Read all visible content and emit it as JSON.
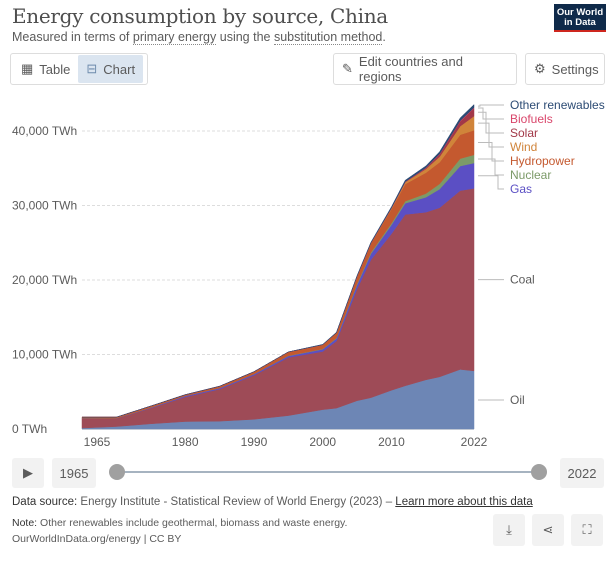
{
  "header": {
    "title": "Energy consumption by source, China",
    "subtitle_pre": "Measured in terms of ",
    "subtitle_link1": "primary energy",
    "subtitle_mid": " using the ",
    "subtitle_link2": "substitution method",
    "subtitle_post": ".",
    "logo": "Our World in Data"
  },
  "toolbar": {
    "table_label": "Table",
    "chart_label": "Chart",
    "edit_label": "Edit countries and regions",
    "settings_label": "Settings"
  },
  "timeline": {
    "start": "1965",
    "end": "2022"
  },
  "footer": {
    "source_label": "Data source:",
    "source_text": " Energy Institute - Statistical Review of World Energy (2023) – ",
    "source_link": "Learn more about this data",
    "note_label": "Note:",
    "note_text": " Other renewables include geothermal, biomass and waste energy.",
    "url": "OurWorldInData.org/energy | CC BY"
  },
  "chart_data": {
    "type": "area",
    "stacked": true,
    "title": "Energy consumption by source, China",
    "ylabel": "",
    "xlabel": "",
    "ylim": [
      0,
      44000
    ],
    "xlim": [
      1965,
      2022
    ],
    "y_ticks": [
      {
        "v": 0,
        "label": "0 TWh"
      },
      {
        "v": 10000,
        "label": "10,000 TWh"
      },
      {
        "v": 20000,
        "label": "20,000 TWh"
      },
      {
        "v": 30000,
        "label": "30,000 TWh"
      },
      {
        "v": 40000,
        "label": "40,000 TWh"
      }
    ],
    "x_ticks": [
      {
        "v": 1965,
        "label": "1965"
      },
      {
        "v": 1980,
        "label": "1980"
      },
      {
        "v": 1990,
        "label": "1990"
      },
      {
        "v": 2000,
        "label": "2000"
      },
      {
        "v": 2010,
        "label": "2010"
      },
      {
        "v": 2022,
        "label": "2022"
      }
    ],
    "x": [
      1965,
      1970,
      1975,
      1980,
      1985,
      1990,
      1995,
      2000,
      2002,
      2005,
      2007,
      2010,
      2012,
      2015,
      2017,
      2020,
      2022
    ],
    "series": [
      {
        "name": "Oil",
        "color": "#6d86b5",
        "values": [
          130,
          330,
          700,
          1000,
          1050,
          1300,
          1800,
          2600,
          2800,
          3800,
          4200,
          5200,
          5800,
          6600,
          7000,
          8000,
          7800
        ]
      },
      {
        "name": "Coal",
        "color": "#9e4b57",
        "values": [
          1350,
          1100,
          2100,
          3300,
          4300,
          5900,
          7800,
          7800,
          9000,
          15000,
          18500,
          21000,
          23000,
          22500,
          22700,
          24000,
          24500
        ]
      },
      {
        "name": "Gas",
        "color": "#5b4fc4",
        "values": [
          10,
          30,
          80,
          150,
          150,
          170,
          200,
          300,
          350,
          550,
          800,
          1200,
          1500,
          2000,
          2500,
          3300,
          3400
        ]
      },
      {
        "name": "Nuclear",
        "color": "#7c9a68",
        "values": [
          0,
          0,
          0,
          0,
          0,
          0,
          40,
          50,
          70,
          150,
          180,
          220,
          280,
          500,
          700,
          1000,
          1100
        ]
      },
      {
        "name": "Hydropower",
        "color": "#c4592f",
        "values": [
          100,
          130,
          200,
          150,
          240,
          320,
          500,
          560,
          700,
          1000,
          1200,
          1900,
          2300,
          2800,
          2900,
          3200,
          3300
        ]
      },
      {
        "name": "Wind",
        "color": "#d0843a",
        "values": [
          0,
          0,
          0,
          0,
          0,
          0,
          0,
          0,
          0,
          5,
          40,
          120,
          250,
          500,
          750,
          1150,
          1900
        ]
      },
      {
        "name": "Solar",
        "color": "#a23848",
        "values": [
          0,
          0,
          0,
          0,
          0,
          0,
          0,
          0,
          0,
          0,
          0,
          5,
          10,
          100,
          300,
          650,
          1050
        ]
      },
      {
        "name": "Biofuels",
        "color": "#d9456a",
        "values": [
          0,
          0,
          0,
          0,
          0,
          0,
          0,
          0,
          5,
          20,
          30,
          40,
          50,
          60,
          70,
          80,
          80
        ]
      },
      {
        "name": "Other renewables",
        "color": "#2c4b74",
        "values": [
          0,
          0,
          0,
          0,
          0,
          0,
          10,
          50,
          60,
          80,
          100,
          150,
          200,
          250,
          300,
          380,
          420
        ]
      }
    ],
    "legend_position": "right, inline labels"
  }
}
